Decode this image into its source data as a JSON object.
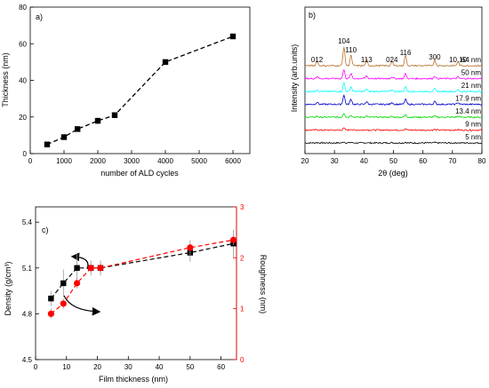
{
  "chart_data": [
    {
      "panel": "a)",
      "type": "line",
      "xlabel": "number of ALD cycles",
      "ylabel": "Thickness (nm)",
      "xlim": [
        0,
        6500
      ],
      "ylim": [
        0,
        80
      ],
      "xticks": [
        0,
        1000,
        2000,
        3000,
        4000,
        5000,
        6000
      ],
      "yticks": [
        0,
        20,
        40,
        60,
        80
      ],
      "series": [
        {
          "x": [
            500,
            1000,
            1400,
            2000,
            2500,
            4000,
            6000
          ],
          "y": [
            5,
            9,
            13.4,
            17.9,
            21,
            50,
            64
          ],
          "err": [
            1,
            1.5,
            1.5,
            2,
            1.5,
            1,
            1.5
          ],
          "color": "#000000",
          "marker": "square",
          "dashed": true
        }
      ]
    },
    {
      "panel": "b)",
      "type": "line",
      "xlabel": "2θ (deg)",
      "ylabel": "Intensity (arb.units)",
      "xlim": [
        20,
        80
      ],
      "xticks": [
        20,
        30,
        40,
        50,
        60,
        70,
        80
      ],
      "peaks": [
        {
          "label": "012",
          "x": 24.1
        },
        {
          "label": "104",
          "x": 33.2
        },
        {
          "label": "110",
          "x": 35.6
        },
        {
          "label": "113",
          "x": 40.9
        },
        {
          "label": "024",
          "x": 49.5
        },
        {
          "label": "116",
          "x": 54.1
        },
        {
          "label": "300",
          "x": 64.0
        },
        {
          "label": "10.10",
          "x": 71.9
        }
      ],
      "series": [
        {
          "name": "5 nm",
          "color": "#000000",
          "offset": 0,
          "peak_scale": 0.1
        },
        {
          "name": "9 nm",
          "color": "#ff0000",
          "offset": 1,
          "peak_scale": 0.15
        },
        {
          "name": "13.4 nm",
          "color": "#00dd00",
          "offset": 2,
          "peak_scale": 0.35
        },
        {
          "name": "17.9 nm",
          "color": "#0000cc",
          "offset": 3,
          "peak_scale": 0.75
        },
        {
          "name": "21 nm",
          "color": "#00ffff",
          "offset": 4,
          "peak_scale": 0.7
        },
        {
          "name": "50 nm",
          "color": "#ff00ff",
          "offset": 5,
          "peak_scale": 0.7
        },
        {
          "name": "64 nm",
          "color": "#b8732d",
          "offset": 6,
          "peak_scale": 1.55
        }
      ]
    },
    {
      "panel": "c)",
      "type": "scatter",
      "xlabel": "Film thickness (nm)",
      "ylabel": "Density (g/cm³)",
      "ylabel_right": "Roughness (nm)",
      "xlim": [
        0,
        65
      ],
      "ylim": [
        4.5,
        5.5
      ],
      "ylim_right": [
        0,
        3
      ],
      "xticks": [
        0,
        10,
        20,
        30,
        40,
        50,
        60
      ],
      "yticks": [
        "4.5",
        "4.8",
        "5.1",
        "5.4"
      ],
      "yticks_right": [
        "0",
        "1",
        "2",
        "3"
      ],
      "series": [
        {
          "name": "Density",
          "axis": "left",
          "x": [
            5,
            9,
            13.4,
            17.9,
            21,
            50,
            64
          ],
          "y": [
            4.9,
            5.0,
            5.1,
            5.1,
            5.1,
            5.2,
            5.26
          ],
          "err": [
            0.05,
            0.09,
            0.1,
            0.05,
            0.05,
            0.06,
            0.09
          ],
          "color": "#000000",
          "marker": "square",
          "dashed": true
        },
        {
          "name": "Roughness",
          "axis": "right",
          "x": [
            5,
            9,
            13.4,
            17.9,
            21,
            50,
            64
          ],
          "y": [
            0.9,
            1.1,
            1.5,
            1.8,
            1.8,
            2.2,
            2.35
          ],
          "err": [
            0.1,
            0.1,
            0.1,
            0.1,
            0.1,
            0.15,
            0.1
          ],
          "color": "#ff0000",
          "marker": "circle",
          "dashed": true
        }
      ]
    }
  ]
}
